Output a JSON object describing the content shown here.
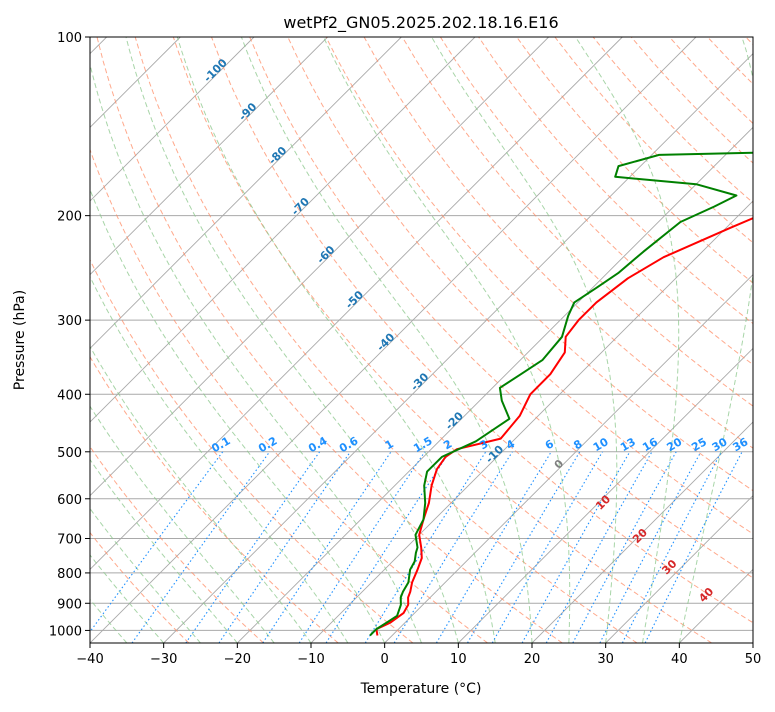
{
  "chart_data": {
    "type": "line",
    "subtype": "skew-t log-p",
    "title": "wetPf2_GN05.2025.202.18.16.E16",
    "xlabel": "Temperature (°C)",
    "ylabel": "Pressure (hPa)",
    "xlim": [
      -40,
      50
    ],
    "ylim": [
      1050,
      100
    ],
    "yscale": "log",
    "grid": true,
    "x_ticks": [
      "−40",
      "−30",
      "−20",
      "−10",
      "0",
      "10",
      "20",
      "30",
      "40",
      "50"
    ],
    "y_ticks": [
      "100",
      "200",
      "300",
      "400",
      "500",
      "600",
      "700",
      "800",
      "900",
      "1000"
    ],
    "colors": {
      "temperature": "#ff0000",
      "dewpoint": "#008000",
      "isotherm": "#a9a9a9",
      "dry_adiabat": "#ff8c66",
      "moist_adiabat": "#8bc78b",
      "mixing_ratio": "#1e90ff",
      "dry_adiabat_label": "#d62728",
      "isotherm_label": "#1f77b4",
      "zero_label": "#808080"
    },
    "series": [
      {
        "key": "temperature",
        "points": [
          [
            -2,
            1020
          ],
          [
            -3,
            995
          ],
          [
            -2,
            970
          ],
          [
            -1.5,
            935
          ],
          [
            -2,
            905
          ],
          [
            -3,
            880
          ],
          [
            -3.5,
            860
          ],
          [
            -4.5,
            830
          ],
          [
            -5.5,
            790
          ],
          [
            -6.5,
            755
          ],
          [
            -8,
            725
          ],
          [
            -10,
            690
          ],
          [
            -11.5,
            650
          ],
          [
            -13,
            610
          ],
          [
            -15,
            570
          ],
          [
            -16.5,
            535
          ],
          [
            -17,
            510
          ],
          [
            -16.5,
            495
          ],
          [
            -12,
            475
          ],
          [
            -12.5,
            435
          ],
          [
            -14,
            400
          ],
          [
            -14,
            370
          ],
          [
            -15,
            340
          ],
          [
            -17,
            320
          ],
          [
            -17.5,
            300
          ],
          [
            -17.5,
            280
          ],
          [
            -16.5,
            255
          ],
          [
            -14.5,
            235
          ],
          [
            -9.5,
            210
          ],
          [
            -6,
            195
          ],
          [
            -3,
            183
          ],
          [
            4,
            172
          ],
          [
            9.5,
            165
          ],
          [
            8,
            158
          ],
          [
            1,
            147
          ],
          [
            -1,
            140
          ],
          [
            -1.5,
            135
          ],
          [
            1,
            130
          ],
          [
            5,
            123
          ],
          [
            10,
            113
          ],
          [
            13,
            105
          ],
          [
            14,
            101
          ]
        ]
      },
      {
        "key": "dewpoint",
        "points": [
          [
            -3,
            1020
          ],
          [
            -3,
            995
          ],
          [
            -2.5,
            970
          ],
          [
            -2,
            945
          ],
          [
            -3,
            905
          ],
          [
            -4,
            880
          ],
          [
            -4.5,
            860
          ],
          [
            -5,
            830
          ],
          [
            -6.5,
            790
          ],
          [
            -7,
            765
          ],
          [
            -8,
            740
          ],
          [
            -8.5,
            725
          ],
          [
            -10.5,
            690
          ],
          [
            -11.5,
            650
          ],
          [
            -13.5,
            610
          ],
          [
            -16,
            570
          ],
          [
            -17.5,
            540
          ],
          [
            -17.5,
            510
          ],
          [
            -15,
            480
          ],
          [
            -13.5,
            440
          ],
          [
            -17,
            410
          ],
          [
            -19,
            390
          ],
          [
            -18,
            370
          ],
          [
            -17,
            350
          ],
          [
            -17.5,
            320
          ],
          [
            -19.5,
            295
          ],
          [
            -20.5,
            280
          ],
          [
            -19.5,
            265
          ],
          [
            -18.5,
            250
          ],
          [
            -18,
            230
          ],
          [
            -17,
            205
          ],
          [
            -14.5,
            193
          ],
          [
            -13,
            185
          ],
          [
            -20,
            177
          ],
          [
            -32,
            172
          ],
          [
            -33,
            165
          ],
          [
            -29,
            158
          ],
          [
            -10,
            156
          ],
          [
            -3,
            152
          ],
          [
            -2,
            147
          ],
          [
            -2,
            140
          ],
          [
            -1,
            134
          ],
          [
            -2.5,
            128
          ],
          [
            -3,
            120
          ],
          [
            -2,
            111
          ],
          [
            -1,
            103
          ],
          [
            0,
            100
          ]
        ]
      }
    ],
    "isotherm_labels": [
      "-100",
      "-90",
      "-80",
      "-70",
      "-60",
      "-50",
      "-40",
      "-30",
      "-20",
      "-10"
    ],
    "mixing_ratio_labels": [
      "0.1",
      "0.2",
      "0.4",
      "0.6",
      "1",
      "1.5",
      "2",
      "3",
      "4",
      "6",
      "8",
      "10",
      "13",
      "16",
      "20",
      "25",
      "30",
      "36"
    ],
    "dry_adiabat_labels": [
      "0",
      "10",
      "20",
      "30",
      "40"
    ]
  }
}
